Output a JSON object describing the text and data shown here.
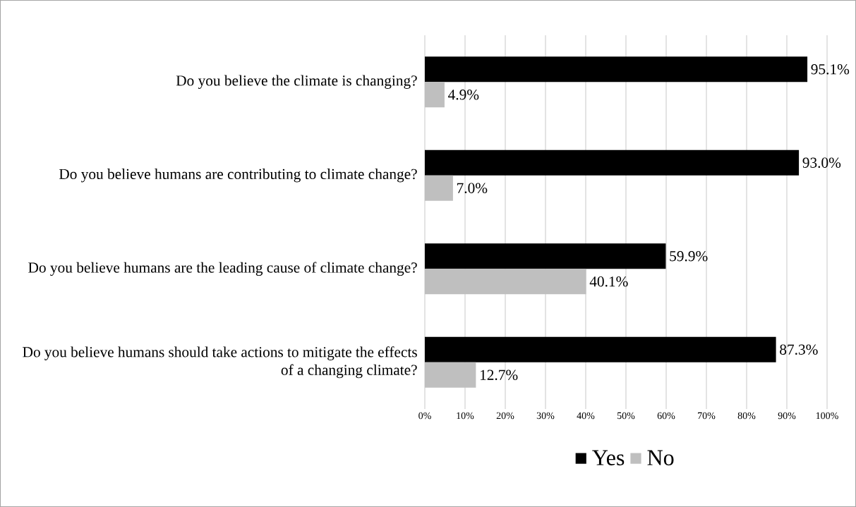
{
  "chart_data": {
    "type": "bar",
    "orientation": "horizontal",
    "categories": [
      "Do you believe the climate is changing?",
      "Do you believe humans are contributing to climate change?",
      "Do you believe humans are the leading cause of climate change?",
      "Do you believe humans should take actions to mitigate the effects of a changing climate?"
    ],
    "series": [
      {
        "name": "Yes",
        "color": "#000000",
        "values": [
          95.1,
          93.0,
          59.9,
          87.3
        ],
        "value_labels": [
          "95.1%",
          "93.0%",
          "59.9%",
          "87.3%"
        ]
      },
      {
        "name": "No",
        "color": "#bfbfbf",
        "values": [
          4.9,
          7.0,
          40.1,
          12.7
        ],
        "value_labels": [
          "4.9%",
          "7.0%",
          "40.1%",
          "12.7%"
        ]
      }
    ],
    "xlim": [
      0,
      100
    ],
    "xticks": [
      {
        "value": 0,
        "label": "0%"
      },
      {
        "value": 10,
        "label": "10%"
      },
      {
        "value": 20,
        "label": "20%"
      },
      {
        "value": 30,
        "label": "30%"
      },
      {
        "value": 40,
        "label": "40%"
      },
      {
        "value": 50,
        "label": "50%"
      },
      {
        "value": 60,
        "label": "60%"
      },
      {
        "value": 70,
        "label": "70%"
      },
      {
        "value": 80,
        "label": "80%"
      },
      {
        "value": 90,
        "label": "90%"
      },
      {
        "value": 100,
        "label": "100%"
      }
    ],
    "grid": "x",
    "legend": "bottom"
  }
}
